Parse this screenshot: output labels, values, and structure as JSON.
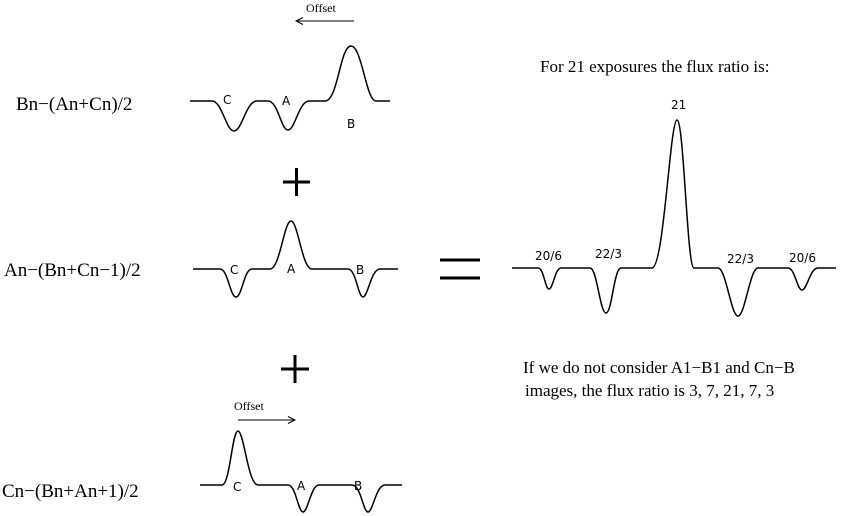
{
  "rows": [
    {
      "equation": "Bn−(An+Cn)/2",
      "labels": {
        "c": "C",
        "a": "A",
        "b": "B"
      },
      "offset_label": "Offset"
    },
    {
      "equation": "An−(Bn+Cn−1)/2",
      "labels": {
        "c": "C",
        "a": "A",
        "b": "B"
      }
    },
    {
      "equation": "Cn−(Bn+An+1)/2",
      "labels": {
        "c": "C",
        "a": "A",
        "b": "B"
      },
      "offset_label": "Offset"
    }
  ],
  "result": {
    "title": "For 21 exposures the flux ratio is:",
    "peak_labels": [
      "20/6",
      "22/3",
      "21",
      "22/3",
      "20/6"
    ],
    "note_line1": "If we do not consider A1−B1 and Cn−B",
    "note_line2": "images, the flux ratio is 3, 7, 21, 7, 3"
  }
}
